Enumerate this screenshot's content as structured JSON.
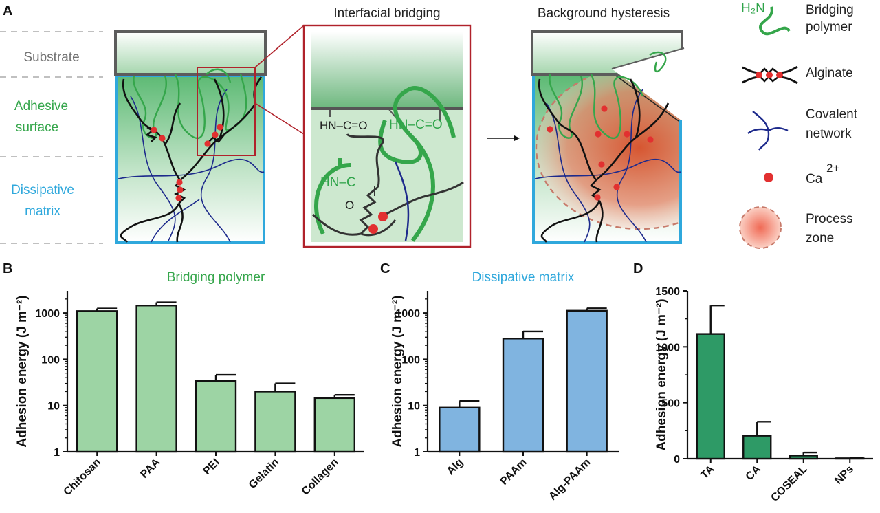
{
  "colors": {
    "green": "#35a64b",
    "blue": "#2fa8dc",
    "gray": "#707070",
    "red": "#e23030",
    "darkred": "#b0222b",
    "navy": "#1d2a8c",
    "bar_green_light": "#9dd4a4",
    "bar_blue": "#80b4e0",
    "bar_green_dark": "#2e9a66"
  },
  "panel_a": {
    "label": "A",
    "title_bridging": "Interfacial bridging",
    "title_hysteresis": "Background hysteresis",
    "layer_substrate": "Substrate",
    "layer_adhesive_1": "Adhesive",
    "layer_adhesive_2": "surface",
    "layer_dissipative_1": "Dissipative",
    "layer_dissipative_2": "matrix",
    "chem_hnco_1": "HN–C=O",
    "chem_hnco_2": "HN–C=O",
    "chem_hn_3": "HN–C",
    "chem_o_3": "O",
    "chem_h2n": "H₂N",
    "legend": {
      "bridging_1": "Bridging",
      "bridging_2": "polymer",
      "alginate": "Alginate",
      "covalent_1": "Covalent",
      "covalent_2": "network",
      "ca": "Ca",
      "ca_sup": "2+",
      "process_1": "Process",
      "process_2": "zone"
    }
  },
  "chart_data": [
    {
      "panel": "B",
      "type": "bar",
      "title": "Bridging polymer",
      "ylabel": "Adhesion energy (J m⁻²)",
      "yscale": "log",
      "ylim": [
        1,
        3000
      ],
      "yticks": [
        "1",
        "10",
        "100",
        "1000"
      ],
      "categories": [
        "Chitosan",
        "PAA",
        "PEI",
        "Gelatin",
        "Collagen"
      ],
      "values": [
        1100,
        1450,
        34,
        20,
        14.5
      ],
      "errors": [
        1250,
        1700,
        46,
        30,
        17
      ]
    },
    {
      "panel": "C",
      "type": "bar",
      "title": "Dissipative matrix",
      "ylabel": "Adhesion energy (J m⁻²)",
      "yscale": "log",
      "ylim": [
        1,
        3000
      ],
      "yticks": [
        "1",
        "10",
        "100",
        "1000"
      ],
      "categories": [
        "Alg",
        "PAAm",
        "Alg-PAAm"
      ],
      "values": [
        9,
        280,
        1120
      ],
      "errors": [
        12.5,
        400,
        1260
      ]
    },
    {
      "panel": "D",
      "type": "bar",
      "title": "",
      "ylabel": "Adhesion energy (J m⁻²)",
      "yscale": "linear",
      "ylim": [
        0,
        1500
      ],
      "yticks": [
        "0",
        "500",
        "1000",
        "1500"
      ],
      "categories": [
        "TA",
        "CA",
        "COSEAL",
        "NPs"
      ],
      "values": [
        1115,
        205,
        28,
        4
      ],
      "errors": [
        1370,
        330,
        55,
        8
      ]
    }
  ]
}
